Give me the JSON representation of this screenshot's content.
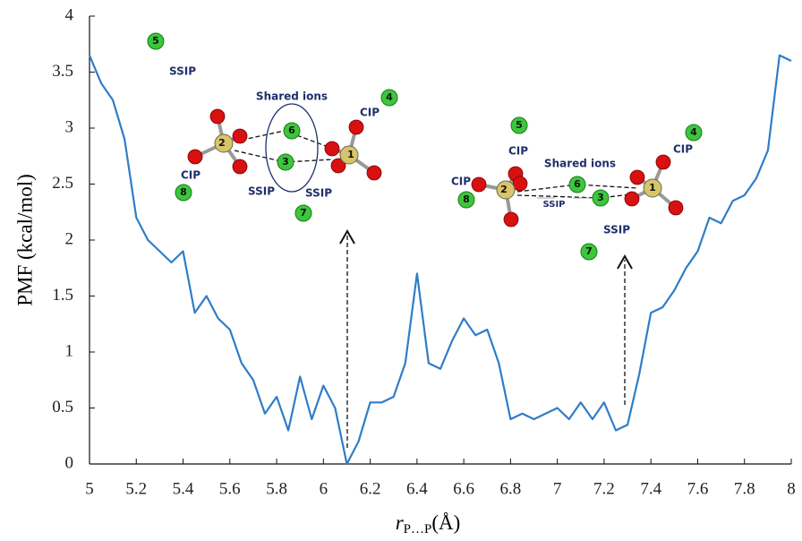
{
  "chart_data": {
    "type": "line",
    "ylabel": "PMF (kcal/mol)",
    "xlabel": {
      "symbol": "r",
      "subscript": "P…P",
      "unit": "(Å)"
    },
    "x": [
      5.0,
      5.05,
      5.1,
      5.15,
      5.2,
      5.25,
      5.3,
      5.35,
      5.4,
      5.45,
      5.5,
      5.55,
      5.6,
      5.65,
      5.7,
      5.75,
      5.8,
      5.85,
      5.9,
      5.95,
      6.0,
      6.05,
      6.1,
      6.15,
      6.2,
      6.25,
      6.3,
      6.35,
      6.4,
      6.45,
      6.5,
      6.55,
      6.6,
      6.65,
      6.7,
      6.75,
      6.8,
      6.85,
      6.9,
      6.95,
      7.0,
      7.05,
      7.1,
      7.15,
      7.2,
      7.25,
      7.3,
      7.35,
      7.4,
      7.45,
      7.5,
      7.55,
      7.6,
      7.65,
      7.7,
      7.75,
      7.8,
      7.85,
      7.9,
      7.95,
      8.0
    ],
    "values": [
      3.65,
      3.4,
      3.25,
      2.9,
      2.2,
      2.0,
      1.9,
      1.8,
      1.9,
      1.35,
      1.5,
      1.3,
      1.2,
      0.9,
      0.75,
      0.45,
      0.6,
      0.3,
      0.78,
      0.4,
      0.7,
      0.5,
      0.0,
      0.2,
      0.55,
      0.55,
      0.6,
      0.9,
      1.7,
      0.9,
      0.85,
      1.1,
      1.3,
      1.15,
      1.2,
      0.9,
      0.4,
      0.45,
      0.4,
      0.45,
      0.5,
      0.4,
      0.55,
      0.4,
      0.55,
      0.3,
      0.35,
      0.8,
      1.35,
      1.4,
      1.55,
      1.75,
      1.9,
      2.2,
      2.15,
      2.35,
      2.4,
      2.55,
      2.8,
      3.65,
      3.6
    ],
    "color": "#2f7dc7",
    "xlim": [
      5,
      8
    ],
    "xticks": [
      5,
      5.2,
      5.4,
      5.6,
      5.8,
      6,
      6.2,
      6.4,
      6.6,
      6.8,
      7,
      7.2,
      7.4,
      7.6,
      7.8,
      8
    ],
    "ylim": [
      0,
      4
    ],
    "yticks": [
      0,
      0.5,
      1,
      1.5,
      2,
      2.5,
      3,
      3.5,
      4
    ]
  },
  "annotations": [
    "5",
    "SSIP",
    "Shared ions",
    "4",
    "CIP",
    "6",
    "2",
    "1",
    "3",
    "CIP",
    "8",
    "SSIP",
    "SSIP",
    "7",
    "5",
    "CIP",
    "4",
    "CIP",
    "Shared ions",
    "CIP",
    "6",
    "2",
    "1",
    "3",
    "8",
    "SSIP",
    "SSIP",
    "7"
  ]
}
